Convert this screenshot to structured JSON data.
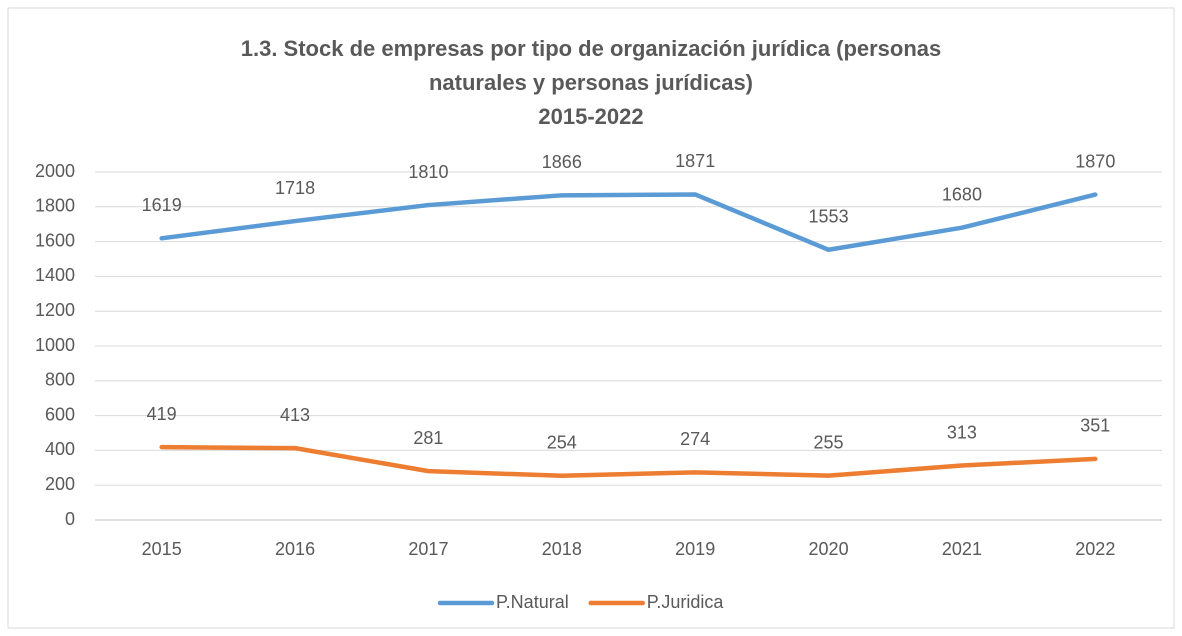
{
  "chart_data": {
    "type": "line",
    "title": [
      "1.3.  Stock de empresas por tipo de organización jurídica (personas",
      "naturales y personas jurídicas)",
      "2015-2022"
    ],
    "categories": [
      "2015",
      "2016",
      "2017",
      "2018",
      "2019",
      "2020",
      "2021",
      "2022"
    ],
    "series": [
      {
        "name": "P.Natural",
        "color": "#5b9bd5",
        "values": [
          1619,
          1718,
          1810,
          1866,
          1871,
          1553,
          1680,
          1870
        ]
      },
      {
        "name": "P.Juridica",
        "color": "#ed7d31",
        "values": [
          419,
          413,
          281,
          254,
          274,
          255,
          313,
          351
        ]
      }
    ],
    "ylim": [
      0,
      2000
    ],
    "yticks": [
      0,
      200,
      400,
      600,
      800,
      1000,
      1200,
      1400,
      1600,
      1800,
      2000
    ],
    "grid": true,
    "legend": "bottom"
  }
}
